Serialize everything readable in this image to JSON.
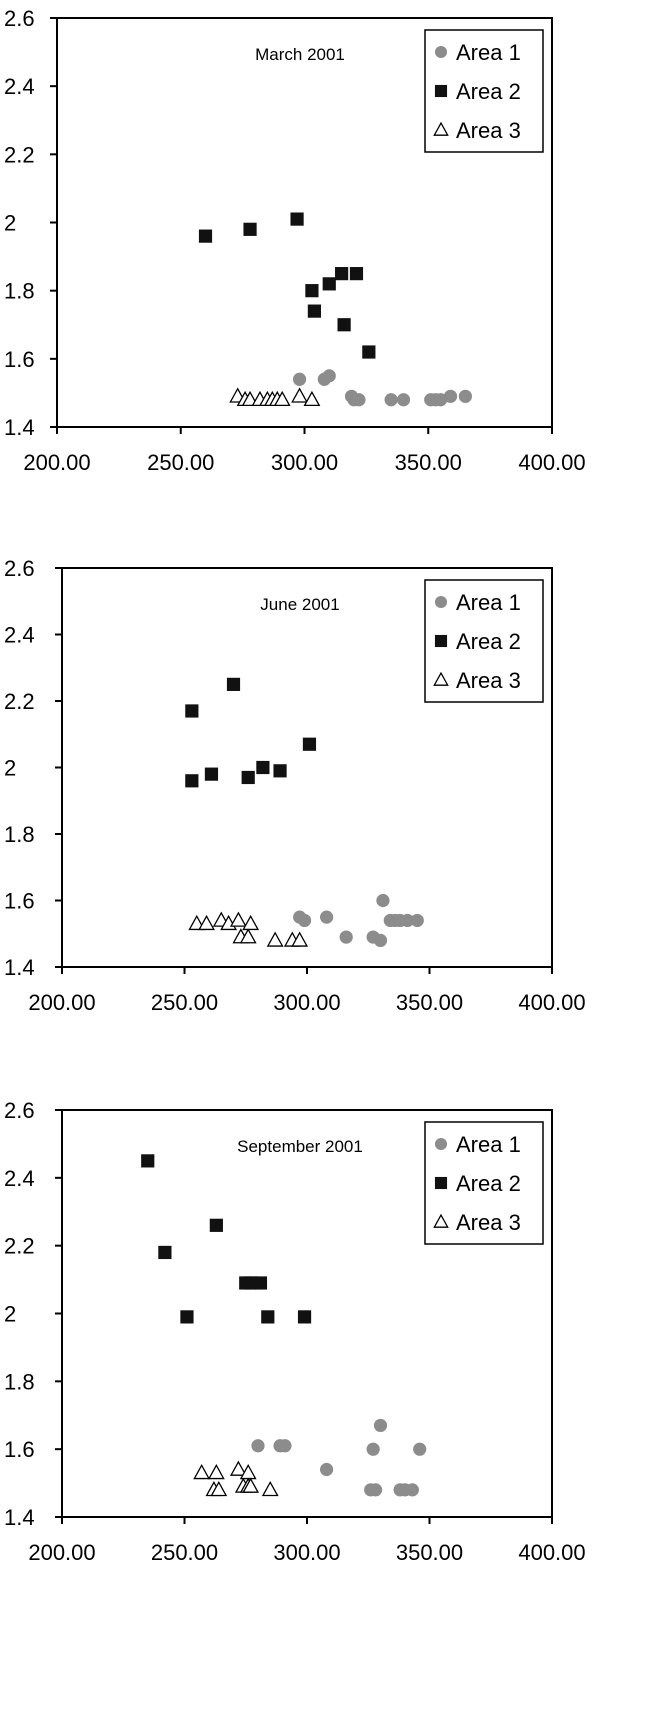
{
  "colors": {
    "area1": "#8c8c8c",
    "area2": "#111111",
    "area3": "#ffffff",
    "axis": "#000000"
  },
  "chart_data": [
    {
      "type": "scatter",
      "title": "March 2001",
      "xlim": [
        200,
        400
      ],
      "ylim": [
        1.4,
        2.6
      ],
      "x_ticks": [
        "200.00",
        "250.00",
        "300.00",
        "350.00",
        "400.00"
      ],
      "y_ticks": [
        "1.4",
        "1.6",
        "1.8",
        "2",
        "2.2",
        "2.4",
        "2.6"
      ],
      "grid": false,
      "legend": "top-right",
      "series": [
        {
          "name": "Area 1",
          "marker": "circle",
          "points": [
            [
              298,
              1.54
            ],
            [
              308,
              1.54
            ],
            [
              310,
              1.55
            ],
            [
              319,
              1.49
            ],
            [
              320,
              1.48
            ],
            [
              322,
              1.48
            ],
            [
              335,
              1.48
            ],
            [
              340,
              1.48
            ],
            [
              351,
              1.48
            ],
            [
              353,
              1.48
            ],
            [
              355,
              1.48
            ],
            [
              359,
              1.49
            ],
            [
              365,
              1.49
            ]
          ]
        },
        {
          "name": "Area 2",
          "marker": "square",
          "points": [
            [
              260,
              1.96
            ],
            [
              278,
              1.98
            ],
            [
              297,
              2.01
            ],
            [
              303,
              1.8
            ],
            [
              304,
              1.74
            ],
            [
              310,
              1.82
            ],
            [
              315,
              1.85
            ],
            [
              316,
              1.7
            ],
            [
              321,
              1.85
            ],
            [
              326,
              1.62
            ]
          ]
        },
        {
          "name": "Area 3",
          "marker": "triangle",
          "points": [
            [
              273,
              1.49
            ],
            [
              276,
              1.48
            ],
            [
              278,
              1.48
            ],
            [
              282,
              1.48
            ],
            [
              285,
              1.48
            ],
            [
              287,
              1.48
            ],
            [
              289,
              1.48
            ],
            [
              291,
              1.48
            ],
            [
              298,
              1.49
            ],
            [
              303,
              1.48
            ]
          ]
        }
      ]
    },
    {
      "type": "scatter",
      "title": "June 2001",
      "xlim": [
        200,
        400
      ],
      "ylim": [
        1.4,
        2.6
      ],
      "x_ticks": [
        "200.00",
        "250.00",
        "300.00",
        "350.00",
        "400.00"
      ],
      "y_ticks": [
        "1.4",
        "1.6",
        "1.8",
        "2",
        "2.2",
        "2.4",
        "2.6"
      ],
      "grid": false,
      "legend": "top-right",
      "series": [
        {
          "name": "Area 1",
          "marker": "circle",
          "points": [
            [
              297,
              1.55
            ],
            [
              299,
              1.54
            ],
            [
              308,
              1.55
            ],
            [
              316,
              1.49
            ],
            [
              327,
              1.49
            ],
            [
              330,
              1.48
            ],
            [
              331,
              1.6
            ],
            [
              334,
              1.54
            ],
            [
              336,
              1.54
            ],
            [
              338,
              1.54
            ],
            [
              341,
              1.54
            ],
            [
              345,
              1.54
            ]
          ]
        },
        {
          "name": "Area 2",
          "marker": "square",
          "points": [
            [
              253,
              2.17
            ],
            [
              253,
              1.96
            ],
            [
              261,
              1.98
            ],
            [
              270,
              2.25
            ],
            [
              276,
              1.97
            ],
            [
              282,
              2.0
            ],
            [
              289,
              1.99
            ],
            [
              301,
              2.07
            ]
          ]
        },
        {
          "name": "Area 3",
          "marker": "triangle",
          "points": [
            [
              255,
              1.53
            ],
            [
              259,
              1.53
            ],
            [
              265,
              1.54
            ],
            [
              268,
              1.53
            ],
            [
              272,
              1.54
            ],
            [
              273,
              1.49
            ],
            [
              276,
              1.49
            ],
            [
              277,
              1.53
            ],
            [
              287,
              1.48
            ],
            [
              294,
              1.48
            ],
            [
              297,
              1.48
            ]
          ]
        }
      ]
    },
    {
      "type": "scatter",
      "title": "September 2001",
      "xlim": [
        200,
        400
      ],
      "ylim": [
        1.4,
        2.6
      ],
      "x_ticks": [
        "200.00",
        "250.00",
        "300.00",
        "350.00",
        "400.00"
      ],
      "y_ticks": [
        "1.4",
        "1.6",
        "1.8",
        "2",
        "2.2",
        "2.4",
        "2.6"
      ],
      "grid": false,
      "legend": "top-right",
      "series": [
        {
          "name": "Area 1",
          "marker": "circle",
          "points": [
            [
              280,
              1.61
            ],
            [
              289,
              1.61
            ],
            [
              291,
              1.61
            ],
            [
              308,
              1.54
            ],
            [
              326,
              1.48
            ],
            [
              327,
              1.6
            ],
            [
              328,
              1.48
            ],
            [
              330,
              1.67
            ],
            [
              338,
              1.48
            ],
            [
              340,
              1.48
            ],
            [
              343,
              1.48
            ],
            [
              346,
              1.6
            ]
          ]
        },
        {
          "name": "Area 2",
          "marker": "square",
          "points": [
            [
              235,
              2.45
            ],
            [
              242,
              2.18
            ],
            [
              251,
              1.99
            ],
            [
              263,
              2.26
            ],
            [
              275,
              2.09
            ],
            [
              277,
              2.09
            ],
            [
              281,
              2.09
            ],
            [
              284,
              1.99
            ],
            [
              299,
              1.99
            ]
          ]
        },
        {
          "name": "Area 3",
          "marker": "triangle",
          "points": [
            [
              257,
              1.53
            ],
            [
              262,
              1.48
            ],
            [
              263,
              1.53
            ],
            [
              264,
              1.48
            ],
            [
              272,
              1.54
            ],
            [
              274,
              1.49
            ],
            [
              276,
              1.53
            ],
            [
              276,
              1.49
            ],
            [
              277,
              1.49
            ],
            [
              285,
              1.48
            ]
          ]
        }
      ]
    }
  ]
}
